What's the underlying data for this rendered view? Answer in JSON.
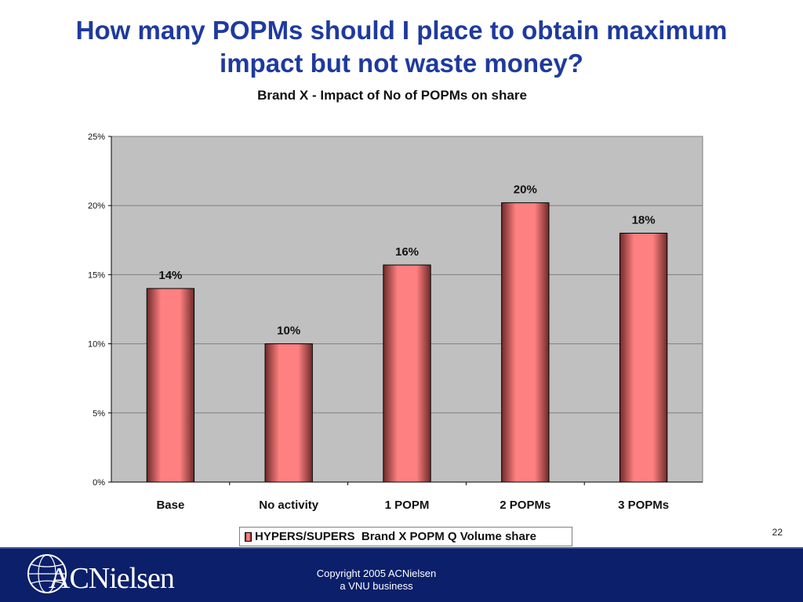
{
  "slide": {
    "title_line1": "How many POPMs should I place to obtain maximum",
    "title_line2": "impact but not waste money?",
    "page_number": "22"
  },
  "colors": {
    "title": "#1f3a9e",
    "plot_background": "#c0c0c0",
    "bar_center": "#ff8080",
    "bar_edge": "#7a2f2f",
    "footer_background": "#0b1f6a"
  },
  "chart_data": {
    "type": "bar",
    "title": "Brand X - Impact of No of POPMs on share",
    "categories": [
      "Base",
      "No activity",
      "1 POPM",
      "2 POPMs",
      "3 POPMs"
    ],
    "series": [
      {
        "name": "HYPERS/SUPERS  Brand X POPM Q Volume share",
        "values": [
          14,
          10,
          15.7,
          20.2,
          18
        ],
        "labels": [
          "14%",
          "10%",
          "16%",
          "20%",
          "18%"
        ]
      }
    ],
    "ylim": [
      0,
      25
    ],
    "yticks": [
      0,
      5,
      10,
      15,
      20,
      25
    ],
    "ytick_labels": [
      "0%",
      "5%",
      "10%",
      "15%",
      "20%",
      "25%"
    ],
    "grid": true,
    "legend_placement": "bottom",
    "xlabel": "",
    "ylabel": ""
  },
  "footer": {
    "logo_text": "ACNielsen",
    "copyright_line1": "Copyright 2005 ACNielsen",
    "copyright_line2": "a VNU business"
  }
}
